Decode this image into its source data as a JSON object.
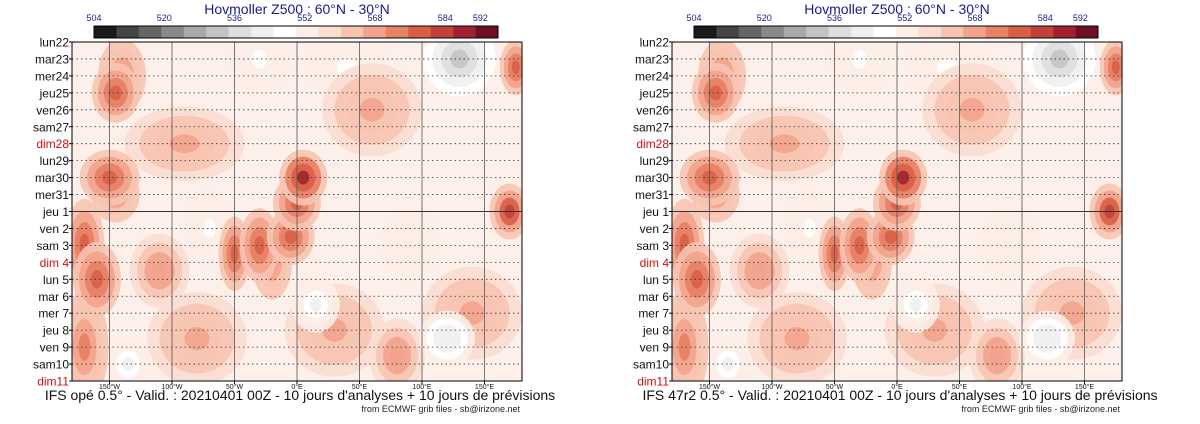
{
  "colors": {
    "scale": [
      "#1a1a1a",
      "#444444",
      "#666666",
      "#888888",
      "#aaaaaa",
      "#c4c4c4",
      "#dedede",
      "#efefef",
      "#ffffff",
      "#fdeee8",
      "#fbddd1",
      "#f8c4b2",
      "#f2a38c",
      "#e88064",
      "#d85f47",
      "#c2413a",
      "#9f2430",
      "#6e0f25"
    ],
    "day_text": "#111111",
    "sunday_text": "#cc1111",
    "title_text": "#1a1a8c"
  },
  "chart_data": [
    {
      "type": "heatmap",
      "title": "Hovmoller Z500 : 60°N - 30°N",
      "colorbar_ticks": [
        "504",
        "520",
        "536",
        "552",
        "568",
        "584",
        "592"
      ],
      "colorbar_range": [
        504,
        596
      ],
      "y_labels": [
        "lun22",
        "mar23",
        "mer24",
        "jeu25",
        "ven26",
        "sam27",
        "dim28",
        "lun29",
        "mar30",
        "mer31",
        "jeu 1",
        "ven 2",
        "sam 3",
        "dim 4",
        "lun 5",
        "mar 6",
        "mer 7",
        "jeu 8",
        "ven 9",
        "sam10",
        "dim11"
      ],
      "sunday_labels": [
        "dim28",
        "dim 4",
        "dim11"
      ],
      "x_labels": [
        "150°W",
        "100°W",
        "50°W",
        "0°E",
        "50°E",
        "100°E",
        "150°E"
      ],
      "x_values": [
        -150,
        -100,
        -50,
        0,
        50,
        100,
        150
      ],
      "x_range": [
        -180,
        180
      ],
      "analysis_forecast_split": "jeu 1",
      "features": [
        {
          "lon": -145,
          "day": 3.0,
          "value": 580,
          "lw": 12,
          "dw": 1.6
        },
        {
          "lon": -140,
          "day": 2.0,
          "value": 574,
          "lw": 12,
          "dw": 2.0
        },
        {
          "lon": -150,
          "day": 8.0,
          "value": 576,
          "lw": 15,
          "dw": 1.5
        },
        {
          "lon": -145,
          "day": 9.0,
          "value": 574,
          "lw": 12,
          "dw": 1.5
        },
        {
          "lon": -170,
          "day": 12.0,
          "value": 576,
          "lw": 10,
          "dw": 2.5
        },
        {
          "lon": -160,
          "day": 14.0,
          "value": 578,
          "lw": 12,
          "dw": 2.0
        },
        {
          "lon": -170,
          "day": 18.0,
          "value": 574,
          "lw": 12,
          "dw": 3.0
        },
        {
          "lon": -50,
          "day": 12.5,
          "value": 576,
          "lw": 8,
          "dw": 2.0
        },
        {
          "lon": -30,
          "day": 12.0,
          "value": 576,
          "lw": 10,
          "dw": 2.0
        },
        {
          "lon": -20,
          "day": 13.0,
          "value": 574,
          "lw": 10,
          "dw": 2.0
        },
        {
          "lon": 5,
          "day": 8.0,
          "value": 586,
          "lw": 12,
          "dw": 1.5
        },
        {
          "lon": 0,
          "day": 9.5,
          "value": 580,
          "lw": 12,
          "dw": 1.5
        },
        {
          "lon": -5,
          "day": 11.5,
          "value": 576,
          "lw": 12,
          "dw": 1.5
        },
        {
          "lon": 170,
          "day": 10.0,
          "value": 584,
          "lw": 10,
          "dw": 1.5
        },
        {
          "lon": 175,
          "day": 1.5,
          "value": 576,
          "lw": 8,
          "dw": 1.5
        },
        {
          "lon": 80,
          "day": 18.5,
          "value": 570,
          "lw": 14,
          "dw": 2.0
        },
        {
          "lon": -110,
          "day": 13.5,
          "value": 570,
          "lw": 15,
          "dw": 2.0
        },
        {
          "lon": 60,
          "day": 4.0,
          "value": 566,
          "lw": 25,
          "dw": 2.5
        },
        {
          "lon": -90,
          "day": 6.0,
          "value": 566,
          "lw": 30,
          "dw": 2.0
        },
        {
          "lon": 140,
          "day": 16.0,
          "value": 568,
          "lw": 25,
          "dw": 2.5
        },
        {
          "lon": -80,
          "day": 17.5,
          "value": 568,
          "lw": 25,
          "dw": 2.5
        },
        {
          "lon": 30,
          "day": 17.0,
          "value": 568,
          "lw": 25,
          "dw": 2.5
        },
        {
          "lon": 130,
          "day": 1.0,
          "value": 530,
          "lw": 18,
          "dw": 2.0
        },
        {
          "lon": 120,
          "day": 17.5,
          "value": 540,
          "lw": 14,
          "dw": 1.5
        },
        {
          "lon": -135,
          "day": 19.0,
          "value": 544,
          "lw": 12,
          "dw": 1.5
        },
        {
          "lon": -70,
          "day": 11.0,
          "value": 548,
          "lw": 12,
          "dw": 2.0
        },
        {
          "lon": 15,
          "day": 15.5,
          "value": 544,
          "lw": 12,
          "dw": 1.5
        },
        {
          "lon": 40,
          "day": 1.5,
          "value": 548,
          "lw": 20,
          "dw": 2.0
        },
        {
          "lon": -30,
          "day": 1.0,
          "value": 548,
          "lw": 15,
          "dw": 2.0
        },
        {
          "lon": 90,
          "day": 12.0,
          "value": 550,
          "lw": 15,
          "dw": 2.0
        }
      ],
      "caption": "IFS opé 0.5° - Valid. : 20210401 00Z - 10 jours d'analyses + 10 jours de prévisions",
      "credit": "from ECMWF grib files - sb@irizone.net"
    },
    {
      "type": "heatmap",
      "title": "Hovmoller Z500 : 60°N - 30°N",
      "colorbar_ticks": [
        "504",
        "520",
        "536",
        "552",
        "568",
        "584",
        "592"
      ],
      "colorbar_range": [
        504,
        596
      ],
      "y_labels": [
        "lun22",
        "mar23",
        "mer24",
        "jeu25",
        "ven26",
        "sam27",
        "dim28",
        "lun29",
        "mar30",
        "mer31",
        "jeu 1",
        "ven 2",
        "sam 3",
        "dim 4",
        "lun 5",
        "mar 6",
        "mer 7",
        "jeu 8",
        "ven 9",
        "sam10",
        "dim11"
      ],
      "sunday_labels": [
        "dim28",
        "dim 4",
        "dim11"
      ],
      "x_labels": [
        "150°W",
        "100°W",
        "50°W",
        "0°E",
        "50°E",
        "100°E",
        "150°E"
      ],
      "x_values": [
        -150,
        -100,
        -50,
        0,
        50,
        100,
        150
      ],
      "x_range": [
        -180,
        180
      ],
      "analysis_forecast_split": "jeu 1",
      "features": [
        {
          "lon": -145,
          "day": 3.0,
          "value": 580,
          "lw": 12,
          "dw": 1.6
        },
        {
          "lon": -140,
          "day": 2.0,
          "value": 574,
          "lw": 12,
          "dw": 2.0
        },
        {
          "lon": -150,
          "day": 8.0,
          "value": 576,
          "lw": 15,
          "dw": 1.5
        },
        {
          "lon": -145,
          "day": 9.0,
          "value": 574,
          "lw": 12,
          "dw": 1.5
        },
        {
          "lon": -170,
          "day": 12.0,
          "value": 576,
          "lw": 10,
          "dw": 2.5
        },
        {
          "lon": -160,
          "day": 14.0,
          "value": 578,
          "lw": 12,
          "dw": 2.0
        },
        {
          "lon": -170,
          "day": 18.0,
          "value": 574,
          "lw": 12,
          "dw": 3.0
        },
        {
          "lon": -50,
          "day": 12.5,
          "value": 576,
          "lw": 8,
          "dw": 2.0
        },
        {
          "lon": -30,
          "day": 12.0,
          "value": 576,
          "lw": 10,
          "dw": 2.0
        },
        {
          "lon": -20,
          "day": 13.0,
          "value": 574,
          "lw": 10,
          "dw": 2.0
        },
        {
          "lon": 5,
          "day": 8.0,
          "value": 586,
          "lw": 12,
          "dw": 1.5
        },
        {
          "lon": 0,
          "day": 9.5,
          "value": 580,
          "lw": 12,
          "dw": 1.5
        },
        {
          "lon": -5,
          "day": 11.5,
          "value": 576,
          "lw": 12,
          "dw": 1.5
        },
        {
          "lon": 170,
          "day": 10.0,
          "value": 584,
          "lw": 10,
          "dw": 1.5
        },
        {
          "lon": 175,
          "day": 1.5,
          "value": 576,
          "lw": 8,
          "dw": 1.5
        },
        {
          "lon": 80,
          "day": 18.5,
          "value": 570,
          "lw": 14,
          "dw": 2.0
        },
        {
          "lon": -110,
          "day": 13.5,
          "value": 570,
          "lw": 15,
          "dw": 2.0
        },
        {
          "lon": 60,
          "day": 4.0,
          "value": 566,
          "lw": 25,
          "dw": 2.5
        },
        {
          "lon": -90,
          "day": 6.0,
          "value": 566,
          "lw": 30,
          "dw": 2.0
        },
        {
          "lon": 140,
          "day": 16.0,
          "value": 568,
          "lw": 25,
          "dw": 2.5
        },
        {
          "lon": -80,
          "day": 17.5,
          "value": 568,
          "lw": 25,
          "dw": 2.5
        },
        {
          "lon": 30,
          "day": 17.0,
          "value": 568,
          "lw": 25,
          "dw": 2.5
        },
        {
          "lon": 130,
          "day": 1.0,
          "value": 530,
          "lw": 18,
          "dw": 2.0
        },
        {
          "lon": 120,
          "day": 17.5,
          "value": 540,
          "lw": 14,
          "dw": 1.5
        },
        {
          "lon": -135,
          "day": 19.0,
          "value": 544,
          "lw": 12,
          "dw": 1.5
        },
        {
          "lon": -70,
          "day": 11.0,
          "value": 548,
          "lw": 12,
          "dw": 2.0
        },
        {
          "lon": 15,
          "day": 15.5,
          "value": 544,
          "lw": 12,
          "dw": 1.5
        },
        {
          "lon": 40,
          "day": 1.5,
          "value": 548,
          "lw": 20,
          "dw": 2.0
        },
        {
          "lon": -30,
          "day": 1.0,
          "value": 548,
          "lw": 15,
          "dw": 2.0
        },
        {
          "lon": 90,
          "day": 12.0,
          "value": 550,
          "lw": 15,
          "dw": 2.0
        }
      ],
      "caption": "IFS 47r2 0.5° - Valid. : 20210401 00Z - 10 jours d'analyses + 10 jours de prévisions",
      "credit": "from ECMWF grib files - sb@irizone.net"
    }
  ]
}
